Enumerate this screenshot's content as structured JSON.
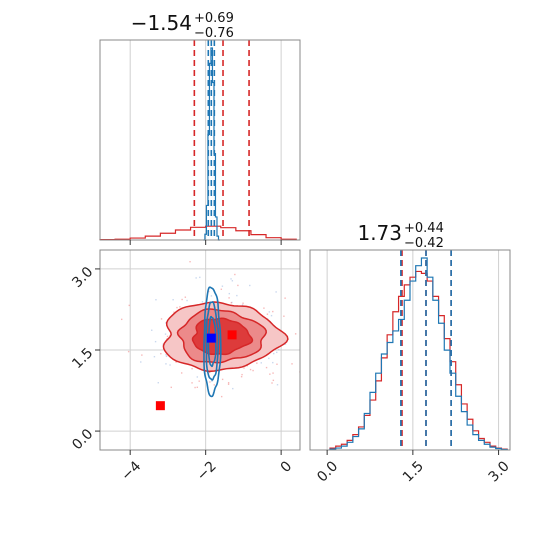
{
  "chart_data": [
    {
      "type": "histogram",
      "panel": "top-left",
      "title": {
        "main": "−1.54",
        "sup": "+0.69",
        "sub": "−0.76"
      },
      "xlim": [
        -4.8,
        0.5
      ],
      "xticks": [
        -4,
        -2,
        0
      ],
      "x_tick_labels_shown": false,
      "grid": true,
      "series": [
        {
          "color": "#d62728",
          "quantile_lines": [
            -2.3,
            -1.54,
            -0.85
          ],
          "x": [
            -4.6,
            -4.2,
            -3.8,
            -3.4,
            -3.0,
            -2.6,
            -2.2,
            -1.8,
            -1.4,
            -1.0,
            -0.6,
            -0.2,
            0.2
          ],
          "counts": [
            0.002,
            0.004,
            0.01,
            0.02,
            0.035,
            0.052,
            0.066,
            0.072,
            0.064,
            0.048,
            0.028,
            0.012,
            0.004
          ]
        },
        {
          "color": "#1f77b4",
          "quantile_lines": [
            -1.93,
            -1.85,
            -1.77
          ],
          "x": [
            -2.04,
            -2.0,
            -1.96,
            -1.92,
            -1.88,
            -1.84,
            -1.8,
            -1.76,
            -1.72,
            -1.68,
            -1.64
          ],
          "counts": [
            0.0,
            0.03,
            0.18,
            0.55,
            0.92,
            1.0,
            0.82,
            0.45,
            0.12,
            0.02,
            0.0
          ]
        }
      ]
    },
    {
      "type": "histogram",
      "panel": "bottom-right",
      "title": {
        "main": "1.73",
        "sup": "+0.44",
        "sub": "−0.42"
      },
      "xlim": [
        -0.3,
        3.2
      ],
      "xticks": [
        0.0,
        1.5,
        3.0
      ],
      "xtick_labels": [
        "0.0",
        "1.5",
        "3.0"
      ],
      "grid": true,
      "series": [
        {
          "color": "#d62728",
          "quantile_lines": [
            1.31,
            1.73,
            2.17
          ],
          "x": [
            0.1,
            0.2,
            0.3,
            0.4,
            0.5,
            0.6,
            0.7,
            0.8,
            0.9,
            1.0,
            1.1,
            1.2,
            1.3,
            1.4,
            1.5,
            1.6,
            1.7,
            1.8,
            1.9,
            2.0,
            2.1,
            2.2,
            2.3,
            2.4,
            2.5,
            2.6,
            2.7,
            2.8,
            2.9,
            3.0,
            3.1
          ],
          "counts": [
            0.01,
            0.02,
            0.03,
            0.05,
            0.08,
            0.12,
            0.18,
            0.26,
            0.36,
            0.48,
            0.6,
            0.72,
            0.8,
            0.86,
            0.9,
            0.93,
            0.92,
            0.88,
            0.8,
            0.7,
            0.58,
            0.46,
            0.34,
            0.24,
            0.16,
            0.1,
            0.06,
            0.04,
            0.02,
            0.01,
            0.005
          ]
        },
        {
          "color": "#1f77b4",
          "quantile_lines": [
            1.29,
            1.73,
            2.17
          ],
          "x": [
            0.1,
            0.2,
            0.3,
            0.4,
            0.5,
            0.6,
            0.7,
            0.8,
            0.9,
            1.0,
            1.1,
            1.2,
            1.3,
            1.4,
            1.5,
            1.6,
            1.7,
            1.8,
            1.9,
            2.0,
            2.1,
            2.2,
            2.3,
            2.4,
            2.5,
            2.6,
            2.7,
            2.8,
            2.9,
            3.0,
            3.1
          ],
          "counts": [
            0.005,
            0.01,
            0.02,
            0.04,
            0.07,
            0.11,
            0.19,
            0.3,
            0.4,
            0.5,
            0.56,
            0.62,
            0.68,
            0.78,
            0.88,
            0.96,
            1.0,
            0.9,
            0.78,
            0.66,
            0.52,
            0.4,
            0.28,
            0.2,
            0.13,
            0.08,
            0.05,
            0.03,
            0.015,
            0.008,
            0.003
          ]
        }
      ]
    },
    {
      "type": "contour",
      "panel": "bottom-left",
      "xlim": [
        -4.8,
        0.5
      ],
      "ylim": [
        -0.35,
        3.35
      ],
      "xticks": [
        -4,
        -2,
        0
      ],
      "xtick_labels": [
        "−4",
        "−2",
        "0"
      ],
      "yticks": [
        0.0,
        1.5,
        3.0
      ],
      "ytick_labels": [
        "0.0",
        "1.5",
        "3.0"
      ],
      "grid": true,
      "red_contours": {
        "color": "#d62728",
        "center": [
          -1.6,
          1.75
        ],
        "levels": [
          {
            "rx": 3.4,
            "ry": 1.25,
            "rx_f": 1.55,
            "ry_f": 0.62,
            "fill": "#f6c6c6"
          },
          {
            "rx": 2.55,
            "ry": 0.95,
            "rx_f": 1.12,
            "ry_f": 0.48,
            "fill": "#ec8a8a"
          },
          {
            "rx": 1.7,
            "ry": 0.66,
            "rx_f": 0.75,
            "ry_f": 0.33,
            "fill": "#dd3b3b"
          }
        ]
      },
      "blue_contours": {
        "color": "#1f77b4",
        "center": [
          -1.83,
          1.65
        ],
        "levels": [
          {
            "rx": 0.22,
            "ry": 1.0
          },
          {
            "rx": 0.16,
            "ry": 0.72
          },
          {
            "rx": 0.1,
            "ry": 0.45
          }
        ]
      },
      "markers": [
        {
          "x": -3.2,
          "y": 0.47,
          "color": "#ff0000"
        },
        {
          "x": -1.3,
          "y": 1.78,
          "color": "#ff0000"
        },
        {
          "x": -1.85,
          "y": 1.72,
          "color": "#0000ff"
        }
      ]
    }
  ]
}
